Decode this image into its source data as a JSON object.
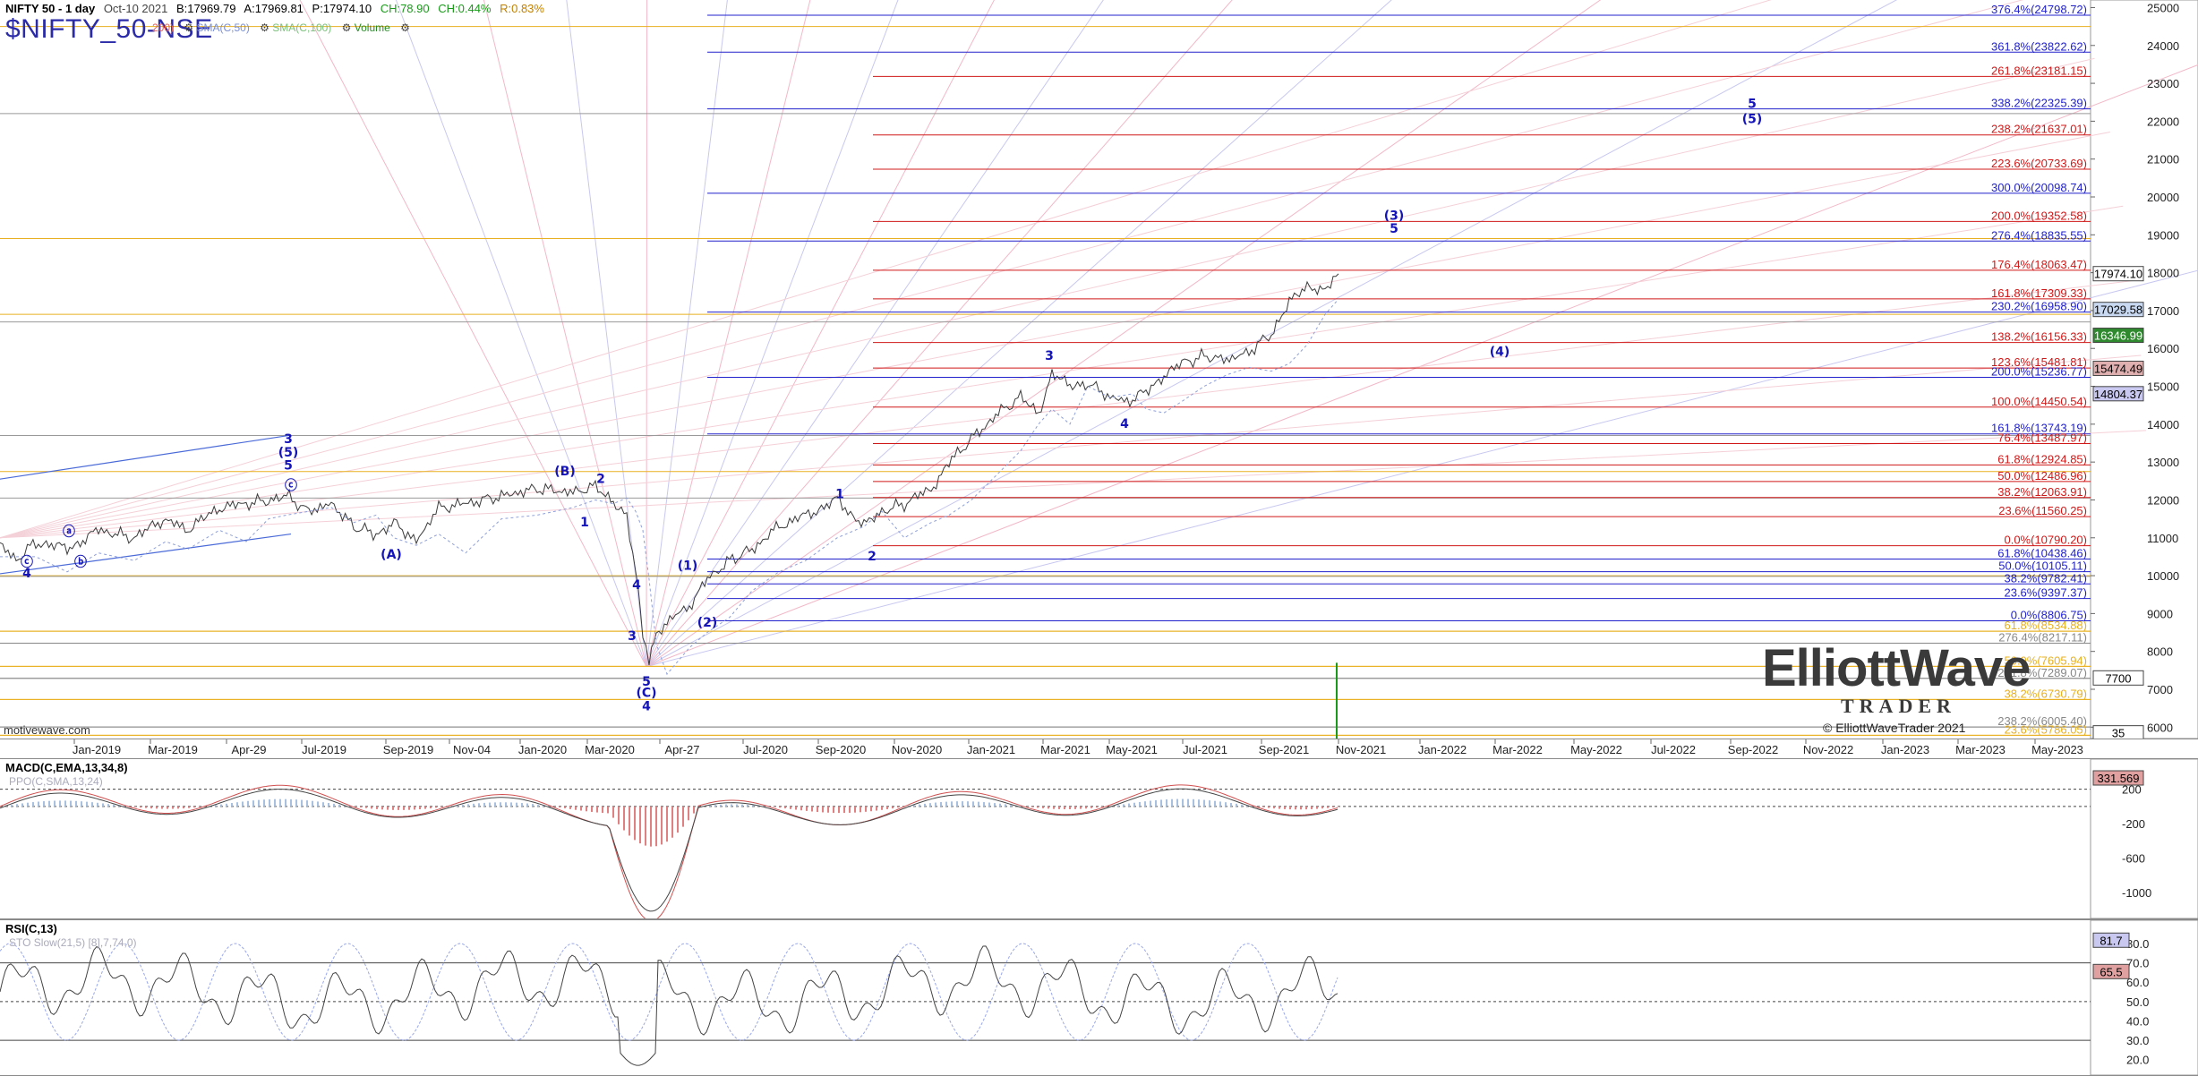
{
  "header": {
    "title": "NIFTY 50 - 1 day",
    "date": "Oct-10 2021",
    "bid": "B:17969.79",
    "ask": "A:17969.81",
    "price": "P:17974.10",
    "change": "CH:78.90",
    "change_pct": "CH:0.44%",
    "range": "R:0.83%",
    "symbol": "$NIFTY_50-NSE",
    "indicators": [
      "200)",
      "SMA(C,50)",
      "SMA(C,100)",
      "Volume"
    ]
  },
  "watermark": "motivewave.com",
  "copyright": "© ElliottWaveTrader 2021",
  "logo": {
    "line1": "ElliottWave",
    "line2": "TRADER"
  },
  "colors": {
    "blue": "#2222cc",
    "red": "#d01818",
    "orange": "#e8b020",
    "gray": "#888888",
    "price": "#333333"
  },
  "chart_data": [
    {
      "type": "line",
      "name": "price",
      "ylim": [
        5700,
        25200
      ],
      "y_ticks": [
        6000,
        7000,
        8000,
        9000,
        10000,
        11000,
        12000,
        13000,
        14000,
        15000,
        16000,
        17000,
        18000,
        19000,
        20000,
        21000,
        22000,
        23000,
        24000,
        25000
      ],
      "x_ticks": [
        "Jan-2019",
        "Mar-2019",
        "Apr-29",
        "Jul-2019",
        "Sep-2019",
        "Nov-04",
        "Jan-2020",
        "Mar-2020",
        "Apr-27",
        "Jul-2020",
        "Sep-2020",
        "Nov-2020",
        "Jan-2021",
        "Mar-2021",
        "May-2021",
        "Jul-2021",
        "Sep-2021",
        "Nov-2021",
        "Jan-2022",
        "Mar-2022",
        "May-2022",
        "Jul-2022",
        "Sep-2022",
        "Nov-2022",
        "Jan-2023",
        "Mar-2023",
        "May-2023"
      ],
      "series": [
        {
          "values": [
            [
              0,
              10800
            ],
            [
              18,
              10400
            ],
            [
              40,
              10900
            ],
            [
              75,
              10700
            ],
            [
              110,
              11200
            ],
            [
              150,
              11000
            ],
            [
              185,
              11500
            ],
            [
              210,
              11200
            ],
            [
              245,
              11800
            ],
            [
              275,
              11900
            ],
            [
              300,
              12000
            ],
            [
              320,
              12100
            ],
            [
              345,
              11700
            ],
            [
              370,
              11900
            ],
            [
              395,
              11300
            ],
            [
              420,
              11100
            ],
            [
              440,
              11400
            ],
            [
              465,
              10900
            ],
            [
              490,
              11800
            ],
            [
              520,
              11900
            ],
            [
              560,
              12100
            ],
            [
              600,
              12300
            ],
            [
              640,
              12200
            ],
            [
              665,
              12350
            ],
            [
              685,
              12000
            ],
            [
              700,
              11500
            ],
            [
              710,
              10200
            ],
            [
              718,
              8500
            ],
            [
              725,
              7700
            ],
            [
              733,
              8400
            ],
            [
              745,
              8800
            ],
            [
              770,
              9200
            ],
            [
              790,
              9900
            ],
            [
              815,
              10400
            ],
            [
              840,
              10700
            ],
            [
              870,
              11300
            ],
            [
              900,
              11600
            ],
            [
              935,
              12000
            ],
            [
              965,
              11300
            ],
            [
              985,
              11700
            ],
            [
              1010,
              11900
            ],
            [
              1040,
              12300
            ],
            [
              1060,
              13000
            ],
            [
              1085,
              13600
            ],
            [
              1115,
              14300
            ],
            [
              1140,
              14700
            ],
            [
              1160,
              14300
            ],
            [
              1175,
              15300
            ],
            [
              1195,
              15000
            ],
            [
              1215,
              15100
            ],
            [
              1240,
              14700
            ],
            [
              1265,
              14600
            ],
            [
              1280,
              14900
            ],
            [
              1300,
              15300
            ],
            [
              1320,
              15600
            ],
            [
              1345,
              15800
            ],
            [
              1370,
              15700
            ],
            [
              1395,
              15900
            ],
            [
              1420,
              16400
            ],
            [
              1440,
              17200
            ],
            [
              1460,
              17600
            ],
            [
              1480,
              17600
            ],
            [
              1495,
              17970
            ]
          ]
        }
      ],
      "price_scale_boxes": [
        "17974.10",
        "17029.58",
        "16346.99",
        "15474.49",
        "14804.37",
        "7700",
        "35"
      ],
      "fib_levels": [
        {
          "label": "376.4%(24798.72)",
          "value": 24798.72,
          "color": "#2222cc"
        },
        {
          "label": "361.8%(23822.62)",
          "value": 23822.62,
          "color": "#2222cc"
        },
        {
          "label": "261.8%(23181.15)",
          "value": 23181.15,
          "color": "#d01818"
        },
        {
          "label": "338.2%(22325.39)",
          "value": 22325.39,
          "color": "#2222cc"
        },
        {
          "label": "238.2%(21637.01)",
          "value": 21637.01,
          "color": "#d01818"
        },
        {
          "label": "223.6%(20733.69)",
          "value": 20733.69,
          "color": "#d01818"
        },
        {
          "label": "300.0%(20098.74)",
          "value": 20098.74,
          "color": "#2222cc"
        },
        {
          "label": "200.0%(19352.58)",
          "value": 19352.58,
          "color": "#d01818"
        },
        {
          "label": "276.4%(18835.55)",
          "value": 18835.55,
          "color": "#2222cc"
        },
        {
          "label": "176.4%(18063.47)",
          "value": 18063.47,
          "color": "#d01818"
        },
        {
          "label": "161.8%(17309.33)",
          "value": 17309.33,
          "color": "#d01818"
        },
        {
          "label": "230.2%(16958.90)",
          "value": 16958.9,
          "color": "#2222cc"
        },
        {
          "label": "138.2%(16156.33)",
          "value": 16156.33,
          "color": "#d01818"
        },
        {
          "label": "123.6%(15481.81)",
          "value": 15481.81,
          "color": "#d01818"
        },
        {
          "label": "200.0%(15236.77)",
          "value": 15236.77,
          "color": "#2222cc"
        },
        {
          "label": "100.0%(14450.54)",
          "value": 14450.54,
          "color": "#d01818"
        },
        {
          "label": "161.8%(13743.19)",
          "value": 13743.19,
          "color": "#2222cc"
        },
        {
          "label": "76.4%(13487.97)",
          "value": 13487.97,
          "color": "#d01818"
        },
        {
          "label": "61.8%(12924.85)",
          "value": 12924.85,
          "color": "#d01818"
        },
        {
          "label": "50.0%(12486.96)",
          "value": 12486.96,
          "color": "#d01818"
        },
        {
          "label": "38.2%(12063.91)",
          "value": 12063.91,
          "color": "#d01818"
        },
        {
          "label": "23.6%(11560.25)",
          "value": 11560.25,
          "color": "#d01818"
        },
        {
          "label": "0.0%(10790.20)",
          "value": 10790.2,
          "color": "#d01818"
        },
        {
          "label": "61.8%(10438.46)",
          "value": 10438.46,
          "color": "#2222cc"
        },
        {
          "label": "50.0%(10105.11)",
          "value": 10105.11,
          "color": "#2222cc"
        },
        {
          "label": "38.2%(9782.41)",
          "value": 9782.41,
          "color": "#2222cc"
        },
        {
          "label": "23.6%(9397.37)",
          "value": 9397.37,
          "color": "#2222cc"
        },
        {
          "label": "0.0%(8806.75)",
          "value": 8806.75,
          "color": "#2222cc"
        },
        {
          "label": "61.8%(8534.88)",
          "value": 8534.88,
          "color": "#e8b020"
        },
        {
          "label": "276.4%(8217.11)",
          "value": 8217.11,
          "color": "#888888"
        },
        {
          "label": "50.0%(7605.94)",
          "value": 7605.94,
          "color": "#e8b020"
        },
        {
          "label": "261.8%(7289.07)",
          "value": 7289.07,
          "color": "#888888"
        },
        {
          "label": "38.2%(6730.79)",
          "value": 6730.79,
          "color": "#e8b020"
        },
        {
          "label": "238.2%(6005.40)",
          "value": 6005.4,
          "color": "#888888"
        },
        {
          "label": "23.6%(5786.05)",
          "value": 5786.05,
          "color": "#e8b020"
        }
      ],
      "wave_labels": [
        {
          "text": "ⓒ",
          "x": 30,
          "y": 10250
        },
        {
          "text": "4",
          "x": 30,
          "y": 9950
        },
        {
          "text": "ⓐ",
          "x": 77,
          "y": 11050
        },
        {
          "text": "ⓑ",
          "x": 90,
          "y": 10250
        },
        {
          "text": "3",
          "x": 322,
          "y": 13500
        },
        {
          "text": "(5)",
          "x": 322,
          "y": 13150
        },
        {
          "text": "5",
          "x": 322,
          "y": 12800
        },
        {
          "text": "ⓒ",
          "x": 325,
          "y": 12270
        },
        {
          "text": "(A)",
          "x": 437,
          "y": 10450
        },
        {
          "text": "(B)",
          "x": 631,
          "y": 12650
        },
        {
          "text": "2",
          "x": 671,
          "y": 12450
        },
        {
          "text": "1",
          "x": 653,
          "y": 11300
        },
        {
          "text": "(1)",
          "x": 768,
          "y": 10150
        },
        {
          "text": "4",
          "x": 711,
          "y": 9650
        },
        {
          "text": "3",
          "x": 706,
          "y": 8300
        },
        {
          "text": "(2)",
          "x": 790,
          "y": 8650
        },
        {
          "text": "5",
          "x": 722,
          "y": 7100
        },
        {
          "text": "(C)",
          "x": 722,
          "y": 6800
        },
        {
          "text": "4",
          "x": 722,
          "y": 6450
        },
        {
          "text": "1",
          "x": 938,
          "y": 12050
        },
        {
          "text": "2",
          "x": 974,
          "y": 10400
        },
        {
          "text": "3",
          "x": 1172,
          "y": 15700
        },
        {
          "text": "4",
          "x": 1256,
          "y": 13900
        },
        {
          "text": "(3)",
          "x": 1557,
          "y": 19400
        },
        {
          "text": "5",
          "x": 1557,
          "y": 19050
        },
        {
          "text": "(4)",
          "x": 1675,
          "y": 15800
        },
        {
          "text": "5",
          "x": 1957,
          "y": 22350
        },
        {
          "text": "(5)",
          "x": 1957,
          "y": 21950
        }
      ]
    },
    {
      "type": "line",
      "name": "MACD(C,EMA,13,34,8)",
      "legend": [
        "MACD(C,EMA,13,34,8)",
        "PPO(C,SMA,13,24)"
      ],
      "ylim": [
        -1300,
        550
      ],
      "y_ticks": [
        200,
        -200,
        -600,
        -1000
      ],
      "last_value": "331.569"
    },
    {
      "type": "line",
      "name": "RSI(C,13)",
      "legend": [
        "RSI(C,13)",
        "STO Slow(21,5) [8],7,74,0)"
      ],
      "ylim": [
        12,
        92
      ],
      "y_ticks": [
        80.0,
        70.0,
        60.0,
        50.0,
        40.0,
        30.0,
        20.0
      ],
      "last_values": [
        "81.7",
        "65.5"
      ]
    }
  ]
}
